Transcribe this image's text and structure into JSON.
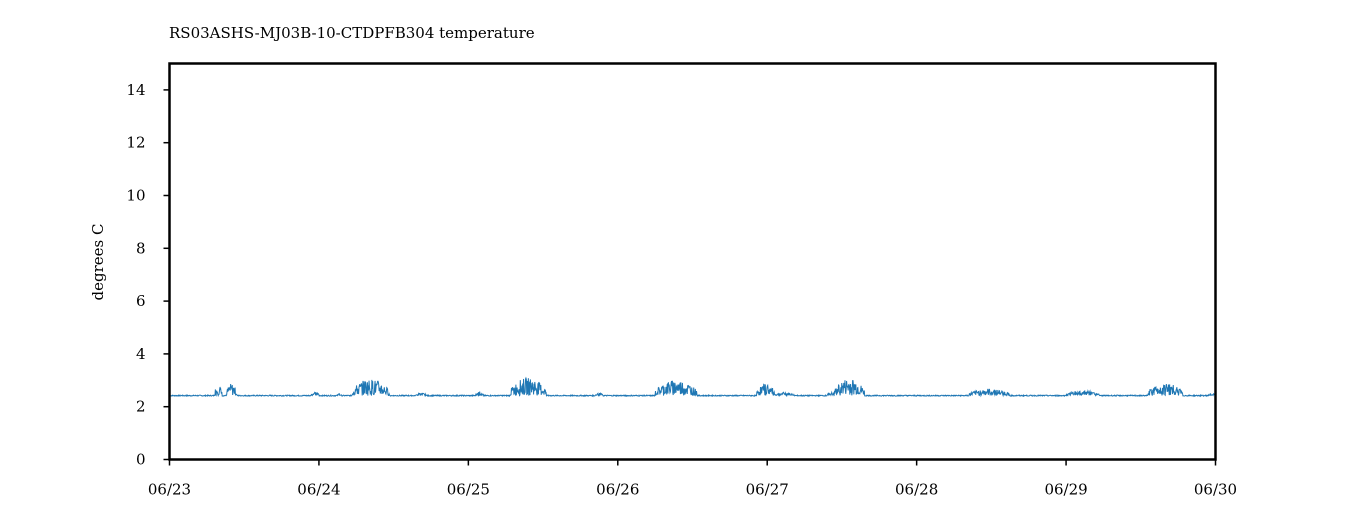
{
  "chart_data": {
    "type": "line",
    "title": "RS03ASHS-MJ03B-10-CTDPFB304 temperature",
    "xlabel": "",
    "ylabel": "degrees C",
    "ylim": [
      0,
      15
    ],
    "xlim": [
      0,
      7
    ],
    "yticks": [
      0,
      2,
      4,
      6,
      8,
      10,
      12,
      14
    ],
    "xticks": [
      {
        "x": 0,
        "label": "06/23"
      },
      {
        "x": 1,
        "label": "06/24"
      },
      {
        "x": 2,
        "label": "06/25"
      },
      {
        "x": 3,
        "label": "06/26"
      },
      {
        "x": 4,
        "label": "06/27"
      },
      {
        "x": 5,
        "label": "06/28"
      },
      {
        "x": 6,
        "label": "06/29"
      },
      {
        "x": 7,
        "label": "06/30"
      }
    ],
    "grid": false,
    "series": [
      {
        "color": "#1f77b4",
        "baseline": 2.42,
        "bursts": [
          {
            "start": 0.3,
            "end": 0.35,
            "peak": 2.85
          },
          {
            "start": 0.38,
            "end": 0.45,
            "peak": 2.88
          },
          {
            "start": 0.95,
            "end": 1.0,
            "peak": 2.58
          },
          {
            "start": 1.12,
            "end": 1.15,
            "peak": 2.5
          },
          {
            "start": 1.22,
            "end": 1.47,
            "peak": 3.05
          },
          {
            "start": 1.65,
            "end": 1.72,
            "peak": 2.52
          },
          {
            "start": 2.05,
            "end": 2.1,
            "peak": 2.58
          },
          {
            "start": 2.28,
            "end": 2.52,
            "peak": 3.1
          },
          {
            "start": 2.85,
            "end": 2.9,
            "peak": 2.52
          },
          {
            "start": 3.25,
            "end": 3.53,
            "peak": 3.02
          },
          {
            "start": 3.93,
            "end": 4.05,
            "peak": 2.88
          },
          {
            "start": 4.05,
            "end": 4.18,
            "peak": 2.55
          },
          {
            "start": 4.4,
            "end": 4.45,
            "peak": 2.55
          },
          {
            "start": 4.45,
            "end": 4.65,
            "peak": 3.07
          },
          {
            "start": 5.35,
            "end": 5.62,
            "peak": 2.68
          },
          {
            "start": 6.0,
            "end": 6.22,
            "peak": 2.62
          },
          {
            "start": 6.55,
            "end": 6.78,
            "peak": 2.9
          },
          {
            "start": 6.95,
            "end": 7.0,
            "peak": 2.5
          }
        ]
      }
    ]
  }
}
